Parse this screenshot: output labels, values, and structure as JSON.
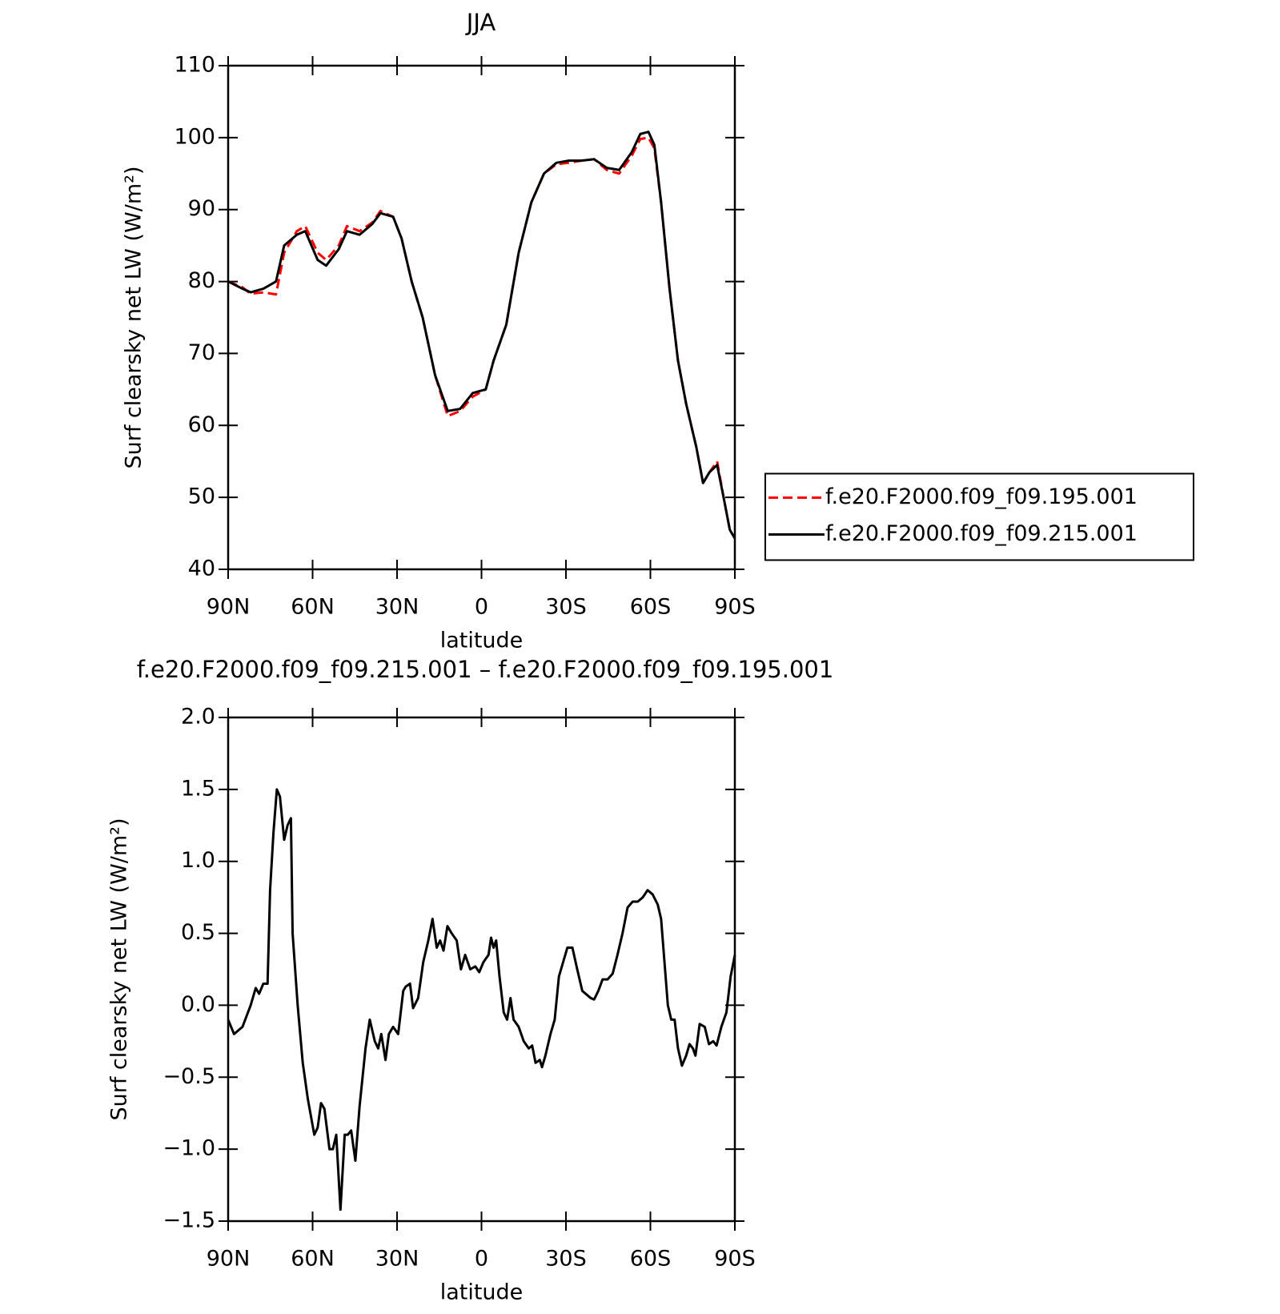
{
  "chart_data": [
    {
      "type": "line",
      "title": "JJA",
      "xlabel": "latitude",
      "ylabel": "Surf clearsky net LW (W/m²)",
      "x": [
        90,
        84.9,
        82,
        77.5,
        73,
        70.1,
        65.6,
        62.6,
        58.2,
        55.2,
        50.7,
        47.8,
        43.3,
        38.8,
        35.9,
        31.4,
        28.4,
        24.8,
        20.9,
        16.5,
        12,
        7.6,
        3.1,
        -1.5,
        -4.3,
        -8.8,
        -13.2,
        -17.7,
        -22.2,
        -26.6,
        -31,
        -35.5,
        -40,
        -44.5,
        -48.9,
        -53.4,
        -56.4,
        -59.3,
        -61.4,
        -63.8,
        -66.8,
        -69.8,
        -72.7,
        -76.3,
        -78.7,
        -81,
        -83.7,
        -86,
        -88.2,
        -90
      ],
      "series": [
        {
          "name": "f.e20.F2000.f09_f09.195.001",
          "color": "#ff0000",
          "dash": true,
          "values": [
            80,
            79.2,
            78.3,
            78.5,
            78.2,
            84,
            87,
            87.7,
            84,
            83,
            85,
            87.7,
            87,
            88.2,
            89.8,
            89,
            86,
            80,
            75,
            67,
            61.3,
            62,
            64,
            65,
            69,
            74,
            84,
            91,
            95,
            96.3,
            96.5,
            96.8,
            97,
            95.5,
            95,
            97.5,
            99.8,
            100,
            98.5,
            91,
            79,
            69,
            63,
            57,
            52,
            53.5,
            55,
            50,
            45.5,
            44.3
          ]
        },
        {
          "name": "f.e20.F2000.f09_f09.215.001",
          "color": "#000000",
          "dash": false,
          "values": [
            80,
            79,
            78.5,
            79,
            80,
            85,
            86.5,
            87,
            83,
            82.2,
            84.5,
            87,
            86.5,
            88,
            89.5,
            89,
            86,
            80,
            75,
            67,
            62,
            62.3,
            64.5,
            65,
            69,
            74,
            84,
            91,
            95,
            96.5,
            96.8,
            96.8,
            97,
            95.8,
            95.5,
            98,
            100.5,
            100.8,
            99,
            91,
            79,
            69,
            63,
            57,
            52,
            53.5,
            54.5,
            50,
            45.5,
            44.3
          ]
        }
      ],
      "xlim": [
        90,
        -90
      ],
      "xticks": [
        {
          "value": 90,
          "label": "90N"
        },
        {
          "value": 60,
          "label": "60N"
        },
        {
          "value": 30,
          "label": "30N"
        },
        0,
        {
          "value": -30,
          "label": "30S"
        },
        {
          "value": -60,
          "label": "60S"
        },
        {
          "value": -90,
          "label": "90S"
        }
      ],
      "ylim": [
        40,
        110
      ],
      "yticks": [
        40,
        50,
        60,
        70,
        80,
        90,
        100,
        110
      ],
      "legend": "outside-right"
    },
    {
      "type": "line",
      "title": "f.e20.F2000.f09_f09.215.001 – f.e20.F2000.f09_f09.195.001",
      "xlabel": "latitude",
      "ylabel": "Surf clearsky net LW (W/m²)",
      "x": [
        90,
        87.9,
        84.9,
        82,
        80.2,
        79,
        77.5,
        76,
        75.1,
        73.9,
        72.7,
        71.6,
        70.1,
        68.9,
        67.7,
        67.1,
        65.3,
        63.5,
        61.7,
        59.4,
        58.2,
        57,
        55.8,
        54,
        52.8,
        51.6,
        50.1,
        48.6,
        47.5,
        46.3,
        44.8,
        43.3,
        41.2,
        39.7,
        37.9,
        36.7,
        35.6,
        34.1,
        32.9,
        31.4,
        29.6,
        27.8,
        26.9,
        25.4,
        24.3,
        22.5,
        20.7,
        18.9,
        17.4,
        15.9,
        14.7,
        13.5,
        12.1,
        10.6,
        8.8,
        7.3,
        5.8,
        4,
        2.2,
        0.8,
        -0.7,
        -2.5,
        -3.4,
        -4.3,
        -5.2,
        -6.4,
        -7.9,
        -9.1,
        -10.3,
        -11.4,
        -13.2,
        -15,
        -16.8,
        -18,
        -19.2,
        -20.7,
        -21.5,
        -22.7,
        -24.5,
        -26,
        -27.5,
        -29,
        -30.5,
        -32.3,
        -34,
        -35.8,
        -37,
        -38.8,
        -40,
        -41.5,
        -43,
        -44.8,
        -46.6,
        -48.3,
        -50.1,
        -51.9,
        -53.7,
        -55.5,
        -57.3,
        -59,
        -60.8,
        -62.6,
        -63.8,
        -65,
        -66.2,
        -67.4,
        -68.6,
        -69.8,
        -71.2,
        -72.7,
        -73.9,
        -75.1,
        -76,
        -77.5,
        -79.3,
        -80.8,
        -82.3,
        -83.5,
        -85.2,
        -87,
        -88.5,
        -90
      ],
      "series": [
        {
          "color": "#000000",
          "dash": false,
          "values": [
            -0.1,
            -0.2,
            -0.15,
            0,
            0.12,
            0.08,
            0.15,
            0.15,
            0.8,
            1.2,
            1.5,
            1.45,
            1.15,
            1.25,
            1.3,
            0.5,
            0,
            -0.4,
            -0.65,
            -0.9,
            -0.85,
            -0.68,
            -0.72,
            -1,
            -1,
            -0.9,
            -1.42,
            -0.9,
            -0.9,
            -0.87,
            -1.08,
            -0.7,
            -0.3,
            -0.1,
            -0.25,
            -0.3,
            -0.2,
            -0.38,
            -0.2,
            -0.15,
            -0.2,
            0.1,
            0.13,
            0.15,
            -0.02,
            0.05,
            0.3,
            0.45,
            0.6,
            0.4,
            0.45,
            0.38,
            0.55,
            0.5,
            0.45,
            0.25,
            0.35,
            0.25,
            0.27,
            0.23,
            0.3,
            0.35,
            0.47,
            0.4,
            0.45,
            0.2,
            -0.05,
            -0.1,
            0.05,
            -0.1,
            -0.15,
            -0.25,
            -0.3,
            -0.28,
            -0.4,
            -0.38,
            -0.43,
            -0.35,
            -0.2,
            -0.1,
            0.2,
            0.3,
            0.4,
            0.4,
            0.25,
            0.1,
            0.08,
            0.05,
            0.04,
            0.1,
            0.18,
            0.18,
            0.22,
            0.35,
            0.5,
            0.68,
            0.72,
            0.72,
            0.75,
            0.8,
            0.77,
            0.7,
            0.6,
            0.3,
            0,
            -0.1,
            -0.1,
            -0.3,
            -0.42,
            -0.35,
            -0.27,
            -0.3,
            -0.35,
            -0.13,
            -0.15,
            -0.27,
            -0.25,
            -0.28,
            -0.15,
            -0.05,
            0.2,
            0.35
          ]
        }
      ],
      "xlim": [
        90,
        -90
      ],
      "xticks": [
        {
          "value": 90,
          "label": "90N"
        },
        {
          "value": 60,
          "label": "60N"
        },
        {
          "value": 30,
          "label": "30N"
        },
        0,
        {
          "value": -30,
          "label": "30S"
        },
        {
          "value": -60,
          "label": "60S"
        },
        {
          "value": -90,
          "label": "90S"
        }
      ],
      "ylim": [
        -1.5,
        2
      ],
      "yticks": [
        {
          "value": -1.5,
          "label": "−1.5"
        },
        {
          "value": -1,
          "label": "−1.0"
        },
        {
          "value": -0.5,
          "label": "−0.5"
        },
        {
          "value": 0,
          "label": "0.0"
        },
        {
          "value": 0.5,
          "label": "0.5"
        },
        {
          "value": 1,
          "label": "1.0"
        },
        {
          "value": 1.5,
          "label": "1.5"
        },
        {
          "value": 2,
          "label": "2.0"
        }
      ]
    }
  ]
}
